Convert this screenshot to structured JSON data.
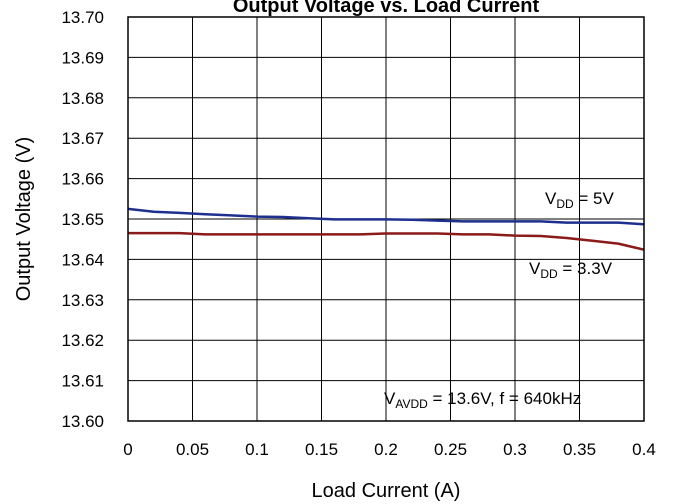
{
  "chart_data": {
    "type": "line",
    "title": "Output Voltage vs. Load Current",
    "xlabel": "Load Current (A)",
    "ylabel": "Output Voltage (V)",
    "xlim": [
      0,
      0.4
    ],
    "ylim": [
      13.6,
      13.7
    ],
    "x_ticks": [
      "0",
      "0.05",
      "0.1",
      "0.15",
      "0.2",
      "0.25",
      "0.3",
      "0.35",
      "0.4"
    ],
    "y_ticks": [
      "13.60",
      "13.61",
      "13.62",
      "13.63",
      "13.64",
      "13.65",
      "13.66",
      "13.67",
      "13.68",
      "13.69",
      "13.70"
    ],
    "grid": true,
    "series": [
      {
        "name_main": "V",
        "name_sub": "DD",
        "name_rest": " = 5V",
        "color": "#1f2f8f",
        "x": [
          0,
          0.02,
          0.04,
          0.06,
          0.08,
          0.1,
          0.12,
          0.14,
          0.16,
          0.18,
          0.2,
          0.22,
          0.24,
          0.26,
          0.28,
          0.3,
          0.32,
          0.34,
          0.36,
          0.38,
          0.4
        ],
        "y": [
          13.6525,
          13.6518,
          13.6515,
          13.6512,
          13.6509,
          13.6506,
          13.6505,
          13.6502,
          13.6499,
          13.6499,
          13.6499,
          13.6498,
          13.6496,
          13.6494,
          13.6494,
          13.6494,
          13.6494,
          13.6491,
          13.6491,
          13.6491,
          13.6487
        ]
      },
      {
        "name_main": "V",
        "name_sub": "DD",
        "name_rest": " = 3.3V",
        "color": "#8b1a1a",
        "x": [
          0,
          0.02,
          0.04,
          0.06,
          0.08,
          0.1,
          0.12,
          0.14,
          0.16,
          0.18,
          0.2,
          0.22,
          0.24,
          0.26,
          0.28,
          0.3,
          0.32,
          0.34,
          0.36,
          0.38,
          0.4
        ],
        "y": [
          13.6465,
          13.6465,
          13.6465,
          13.6462,
          13.6462,
          13.6462,
          13.6462,
          13.6462,
          13.6462,
          13.6462,
          13.6464,
          13.6464,
          13.6464,
          13.6462,
          13.6462,
          13.6459,
          13.6458,
          13.6453,
          13.6446,
          13.6439,
          13.6424
        ]
      }
    ],
    "annotation": {
      "main": "V",
      "sub": "AVDD",
      "rest": " = 13.6V, f = 640kHz"
    }
  }
}
